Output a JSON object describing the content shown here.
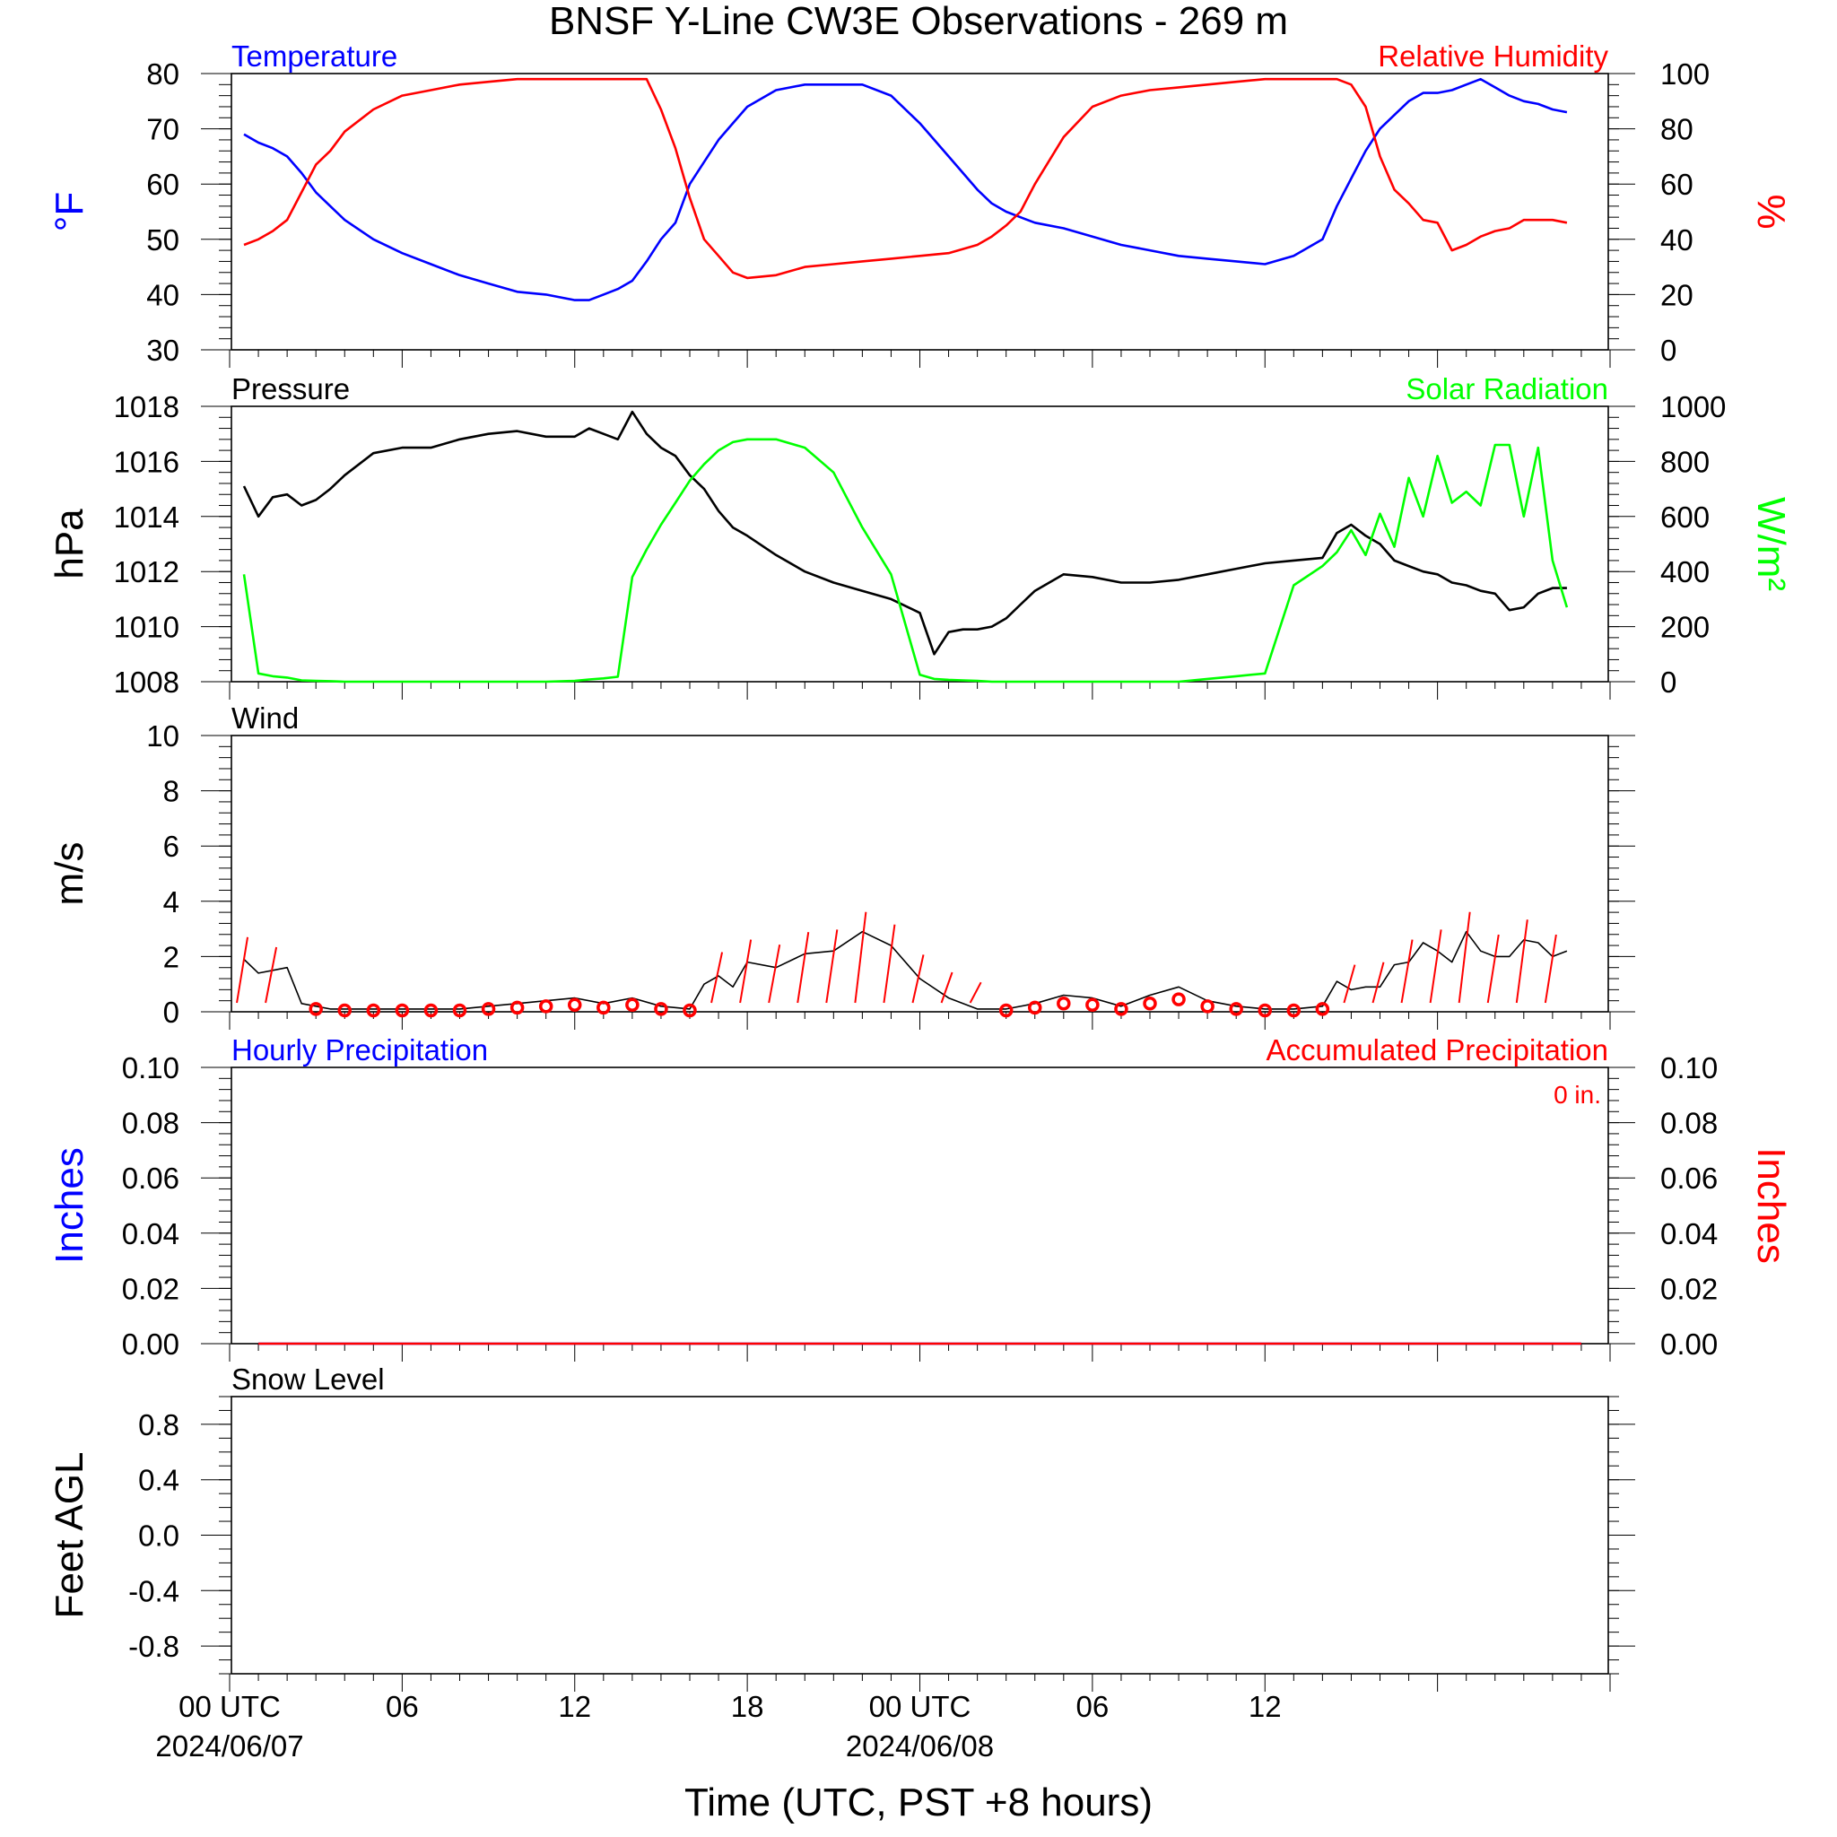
{
  "title": "BNSF Y-Line CW3E Observations - 269 m",
  "colors": {
    "temperature": "#0000ff",
    "humidity": "#ff0000",
    "pressure": "#000000",
    "solar": "#00ff00",
    "wind": "#000000",
    "barb": "#ff0000",
    "precip_left": "#0000ff",
    "precip_right": "#ff0000"
  },
  "chart_data": [
    {
      "panel": "temperature_humidity",
      "type": "line",
      "left_label": "Temperature",
      "right_label": "Relative Humidity",
      "ylabel_left": "°F",
      "ylabel_right": "%",
      "ylim_left": [
        30,
        80
      ],
      "ylim_right": [
        0,
        100
      ],
      "yticks_left": [
        "80",
        "70",
        "60",
        "50",
        "40",
        "30"
      ],
      "yticks_right": [
        "100",
        "80",
        "60",
        "40",
        "20",
        "0"
      ],
      "x_hours": [
        0.5,
        1,
        1.5,
        2,
        2.5,
        3,
        3.5,
        4,
        5,
        6,
        7,
        8,
        9,
        10,
        11,
        12,
        12.5,
        13,
        13.5,
        14,
        14.5,
        15,
        15.5,
        16,
        16.5,
        17,
        17.5,
        18,
        19,
        20,
        21,
        22,
        23,
        24,
        25,
        26,
        26.5,
        27,
        27.5,
        28,
        29,
        30,
        31,
        32,
        33,
        34,
        35,
        36,
        37,
        38,
        38.5,
        39,
        39.5,
        40,
        40.5,
        41,
        41.5,
        42,
        42.5,
        43,
        43.5,
        44,
        44.5,
        45,
        45.5,
        46,
        46.5
      ],
      "series": [
        {
          "name": "Temperature",
          "axis": "left",
          "values": [
            69,
            67.5,
            66.5,
            65,
            62,
            58.5,
            56,
            53.5,
            50,
            47.5,
            45.5,
            43.5,
            42,
            40.5,
            40,
            39,
            39,
            40,
            41,
            42.5,
            46,
            50,
            53,
            60,
            64,
            68,
            71,
            74,
            77,
            78,
            78,
            78,
            76,
            71,
            65,
            59,
            56.5,
            55,
            54,
            53,
            52,
            50.5,
            49,
            48,
            47,
            46.5,
            46,
            45.5,
            47,
            50,
            56,
            61,
            66,
            70,
            72.5,
            75,
            76.5,
            76.5,
            77,
            78,
            79,
            77.5,
            76,
            75,
            74.5,
            73.5,
            73
          ]
        },
        {
          "name": "Relative Humidity",
          "axis": "right",
          "values": [
            38,
            40,
            43,
            47,
            57,
            67,
            72,
            79,
            87,
            92,
            94,
            96,
            97,
            98,
            98,
            98,
            98,
            98,
            98,
            98,
            98,
            87,
            73,
            55,
            40,
            34,
            28,
            26,
            27,
            30,
            31,
            32,
            33,
            34,
            35,
            38,
            41,
            45,
            50,
            60,
            77,
            88,
            92,
            94,
            95,
            96,
            97,
            98,
            98,
            98,
            98,
            96,
            88,
            70,
            58,
            53,
            47,
            46,
            36,
            38,
            41,
            43,
            44,
            47,
            47,
            47,
            46
          ]
        }
      ]
    },
    {
      "panel": "pressure_solar",
      "type": "line",
      "left_label": "Pressure",
      "right_label": "Solar Radiation",
      "ylabel_left": "hPa",
      "ylabel_right": "W/m²",
      "ylim_left": [
        1008,
        1018
      ],
      "ylim_right": [
        0,
        1000
      ],
      "yticks_left": [
        "1018",
        "1016",
        "1014",
        "1012",
        "1010",
        "1008"
      ],
      "yticks_right": [
        "1000",
        "800",
        "600",
        "400",
        "200",
        "0"
      ],
      "x_hours": [
        0.5,
        1,
        1.5,
        2,
        2.5,
        3,
        3.5,
        4,
        5,
        6,
        7,
        8,
        9,
        10,
        11,
        12,
        12.5,
        13,
        13.5,
        14,
        14.5,
        15,
        15.5,
        16,
        16.5,
        17,
        17.5,
        18,
        19,
        20,
        21,
        22,
        23,
        24,
        24.5,
        25,
        25.5,
        26,
        26.5,
        27,
        27.5,
        28,
        29,
        30,
        31,
        32,
        33,
        34,
        35,
        36,
        37,
        38,
        38.5,
        39,
        39.5,
        40,
        40.5,
        41,
        41.5,
        42,
        42.5,
        43,
        43.5,
        44,
        44.5,
        45,
        45.5,
        46,
        46.5
      ],
      "series": [
        {
          "name": "Pressure",
          "axis": "left",
          "values": [
            1015.1,
            1014.0,
            1014.7,
            1014.8,
            1014.4,
            1014.6,
            1015.0,
            1015.5,
            1016.3,
            1016.5,
            1016.5,
            1016.8,
            1017.0,
            1017.1,
            1016.9,
            1016.9,
            1017.2,
            1017.0,
            1016.8,
            1017.8,
            1017.0,
            1016.5,
            1016.2,
            1015.5,
            1015.0,
            1014.2,
            1013.6,
            1013.3,
            1012.6,
            1012.0,
            1011.6,
            1011.3,
            1011.0,
            1010.5,
            1009.0,
            1009.8,
            1009.9,
            1009.9,
            1010.0,
            1010.3,
            1010.8,
            1011.3,
            1011.9,
            1011.8,
            1011.6,
            1011.6,
            1011.7,
            1011.9,
            1012.1,
            1012.3,
            1012.4,
            1012.5,
            1013.4,
            1013.7,
            1013.3,
            1013.0,
            1012.4,
            1012.2,
            1012.0,
            1011.9,
            1011.6,
            1011.5,
            1011.3,
            1011.2,
            1010.6,
            1010.7,
            1011.2,
            1011.4,
            1011.4
          ]
        },
        {
          "name": "Solar Radiation",
          "axis": "right",
          "values": [
            390,
            30,
            20,
            15,
            5,
            3,
            2,
            0,
            0,
            0,
            0,
            0,
            0,
            0,
            0,
            3,
            8,
            12,
            18,
            380,
            480,
            570,
            650,
            730,
            790,
            840,
            870,
            880,
            880,
            850,
            760,
            560,
            390,
            25,
            10,
            7,
            5,
            3,
            0,
            0,
            0,
            0,
            0,
            0,
            0,
            0,
            0,
            10,
            20,
            30,
            350,
            420,
            470,
            550,
            460,
            610,
            490,
            740,
            600,
            820,
            650,
            690,
            640,
            860,
            860,
            600,
            850,
            440,
            270
          ]
        }
      ]
    },
    {
      "panel": "wind",
      "type": "line",
      "left_label": "Wind",
      "ylabel_left": "m/s",
      "ylim_left": [
        0,
        10
      ],
      "yticks_left": [
        "10",
        "8",
        "6",
        "4",
        "2",
        "0"
      ],
      "x_hours": [
        0.5,
        1,
        1.5,
        2,
        2.5,
        3,
        3.5,
        4,
        5,
        6,
        7,
        8,
        9,
        10,
        11,
        12,
        13,
        14,
        15,
        16,
        16.5,
        17,
        17.5,
        18,
        19,
        20,
        21,
        22,
        23,
        24,
        25,
        26,
        27,
        28,
        29,
        30,
        31,
        32,
        33,
        34,
        35,
        36,
        37,
        38,
        38.5,
        39,
        39.5,
        40,
        40.5,
        41,
        41.5,
        42,
        42.5,
        43,
        43.5,
        44,
        44.5,
        45,
        45.5,
        46,
        46.5
      ],
      "series": [
        {
          "name": "Wind",
          "axis": "left",
          "values": [
            1.9,
            1.4,
            1.5,
            1.6,
            0.3,
            0.2,
            0.1,
            0.1,
            0.1,
            0.1,
            0.1,
            0.1,
            0.2,
            0.3,
            0.4,
            0.5,
            0.3,
            0.5,
            0.2,
            0.1,
            1.0,
            1.3,
            0.9,
            1.8,
            1.6,
            2.1,
            2.2,
            2.9,
            2.4,
            1.2,
            0.5,
            0.1,
            0.1,
            0.3,
            0.6,
            0.5,
            0.2,
            0.6,
            0.9,
            0.4,
            0.2,
            0.1,
            0.1,
            0.2,
            1.1,
            0.8,
            0.9,
            0.9,
            1.7,
            1.8,
            2.5,
            2.2,
            1.8,
            2.9,
            2.2,
            2.0,
            2.0,
            2.6,
            2.5,
            2.0,
            2.2
          ]
        }
      ],
      "calm_hours": [
        3,
        4,
        5,
        6,
        7,
        8,
        9,
        10,
        11,
        12,
        13,
        14,
        15,
        16,
        27,
        28,
        29,
        30,
        31,
        32,
        33,
        34,
        35,
        36,
        37,
        38
      ],
      "barb_hours": [
        0.5,
        1.5,
        17,
        18,
        19,
        20,
        21,
        22,
        23,
        24,
        25,
        26,
        39,
        40,
        41,
        42,
        43,
        44,
        45,
        46
      ]
    },
    {
      "panel": "precipitation",
      "type": "line",
      "left_label": "Hourly Precipitation",
      "right_label": "Accumulated Precipitation",
      "accum_total": "0 in.",
      "ylabel_left": "Inches",
      "ylabel_right": "Inches",
      "ylim_left": [
        0,
        0.1
      ],
      "ylim_right": [
        0,
        0.1
      ],
      "yticks_left": [
        "0.10",
        "0.08",
        "0.06",
        "0.04",
        "0.02",
        "0.00"
      ],
      "yticks_right": [
        "0.10",
        "0.08",
        "0.06",
        "0.04",
        "0.02",
        "0.00"
      ],
      "x_hours": [
        1,
        47
      ],
      "series": [
        {
          "name": "Hourly Precipitation",
          "axis": "left",
          "values": [
            0,
            0
          ]
        },
        {
          "name": "Accumulated Precipitation",
          "axis": "right",
          "values": [
            0,
            0
          ]
        }
      ]
    },
    {
      "panel": "snow_level",
      "type": "line",
      "left_label": "Snow Level",
      "ylabel_left": "Feet AGL",
      "ylim_left": [
        -1,
        1
      ],
      "yticks_left": [
        "0.8",
        "0.4",
        "0.0",
        "-0.4",
        "-0.8"
      ],
      "series": []
    }
  ],
  "xaxis": {
    "xlim_hours": [
      0,
      48
    ],
    "ticks": [
      {
        "hour": 0,
        "label": "00 UTC",
        "date": "2024/06/07"
      },
      {
        "hour": 6,
        "label": "06"
      },
      {
        "hour": 12,
        "label": "12"
      },
      {
        "hour": 18,
        "label": "18"
      },
      {
        "hour": 24,
        "label": "00 UTC",
        "date": "2024/06/08"
      },
      {
        "hour": 30,
        "label": "06"
      },
      {
        "hour": 36,
        "label": "12"
      }
    ],
    "xlabel": "Time (UTC, PST +8 hours)"
  }
}
